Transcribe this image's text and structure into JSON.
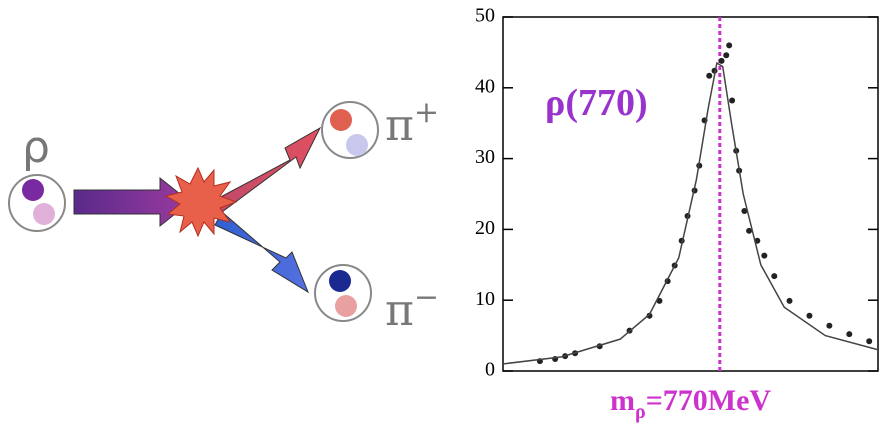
{
  "diagram": {
    "initial": {
      "label": "ρ"
    },
    "products": [
      {
        "label": "π",
        "charge": "+"
      },
      {
        "label": "π",
        "charge": "−"
      }
    ]
  },
  "chart_data": {
    "type": "scatter",
    "annotation": "ρ(770)",
    "mass_label": {
      "symbol": "m",
      "subscript": "ρ",
      "text": "=770MeV"
    },
    "marker_x": 770,
    "marker_color": "#cc33cc",
    "xlim": [
      400,
      1040
    ],
    "ylim": [
      0,
      50
    ],
    "yticks": [
      0,
      10,
      20,
      30,
      40,
      50
    ],
    "series": [
      {
        "type": "scatter",
        "color": "#222222",
        "x": [
          463,
          489,
          506,
          523,
          565,
          616,
          650,
          667,
          681,
          693,
          705,
          715,
          727,
          735,
          744,
          752,
          761,
          773,
          781,
          786,
          791,
          798,
          803,
          812,
          820,
          834,
          846,
          863,
          889,
          923,
          957,
          991,
          1025
        ],
        "values": [
          1.4,
          1.7,
          2.1,
          2.5,
          3.5,
          5.7,
          7.8,
          9.9,
          12.7,
          14.9,
          18.4,
          21.9,
          25.5,
          29,
          35.4,
          41.7,
          42.4,
          43.8,
          44.6,
          46,
          38.2,
          31.1,
          28.3,
          22.6,
          19.8,
          18.4,
          16.3,
          13.4,
          9.9,
          7.8,
          6.4,
          5.2,
          4.2
        ]
      },
      {
        "type": "line",
        "color": "#444444",
        "x": [
          400,
          500,
          600,
          650,
          700,
          730,
          750,
          765,
          775,
          790,
          810,
          840,
          880,
          950,
          1040
        ],
        "values": [
          1,
          2,
          4.5,
          8,
          16,
          27,
          37,
          43.5,
          43,
          35,
          25,
          15,
          9,
          5,
          3
        ]
      }
    ]
  }
}
